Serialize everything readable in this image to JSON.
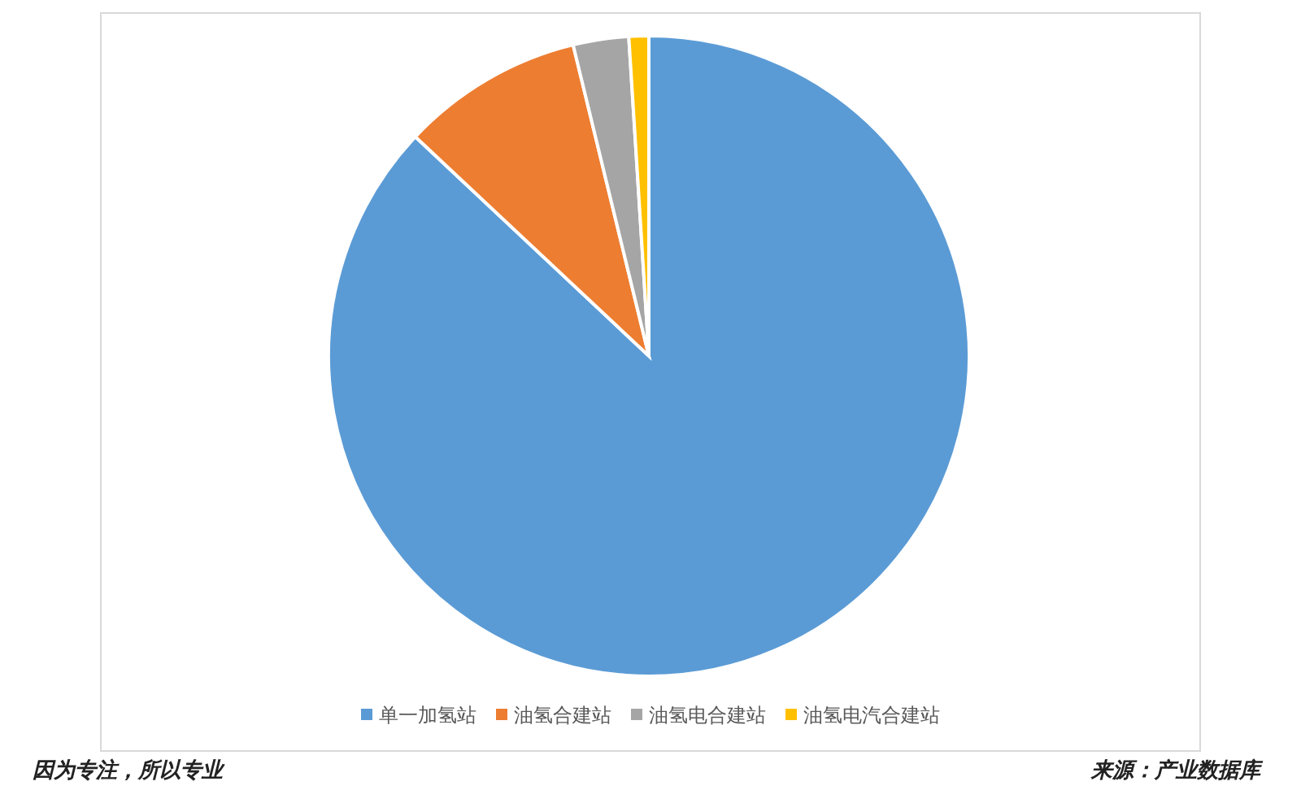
{
  "chart_data": {
    "type": "pie",
    "categories": [
      "单一加氢站",
      "油氢合建站",
      "油氢电合建站",
      "油氢电汽合建站"
    ],
    "values": [
      87,
      9.2,
      2.8,
      1
    ],
    "colors": [
      "#5b9bd5",
      "#ed7d31",
      "#a5a5a5",
      "#ffc000"
    ],
    "legend": "bottom",
    "annotations": [
      "因为专注，所以专业",
      "来源：产业数据库"
    ]
  }
}
